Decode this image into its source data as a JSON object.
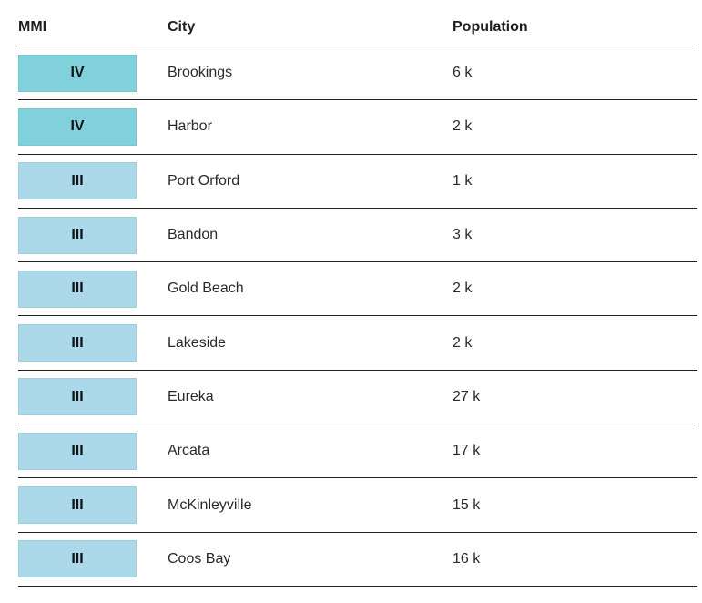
{
  "table": {
    "headers": {
      "mmi": "MMI",
      "city": "City",
      "population": "Population"
    },
    "colors": {
      "IV": "#80d1dc",
      "III": "#acd9e9"
    },
    "rows": [
      {
        "mmi": "IV",
        "city": "Brookings",
        "population": "6 k"
      },
      {
        "mmi": "IV",
        "city": "Harbor",
        "population": "2 k"
      },
      {
        "mmi": "III",
        "city": "Port Orford",
        "population": "1 k"
      },
      {
        "mmi": "III",
        "city": "Bandon",
        "population": "3 k"
      },
      {
        "mmi": "III",
        "city": "Gold Beach",
        "population": "2 k"
      },
      {
        "mmi": "III",
        "city": "Lakeside",
        "population": "2 k"
      },
      {
        "mmi": "III",
        "city": "Eureka",
        "population": "27 k"
      },
      {
        "mmi": "III",
        "city": "Arcata",
        "population": "17 k"
      },
      {
        "mmi": "III",
        "city": "McKinleyville",
        "population": "15 k"
      },
      {
        "mmi": "III",
        "city": "Coos Bay",
        "population": "16 k"
      }
    ]
  }
}
